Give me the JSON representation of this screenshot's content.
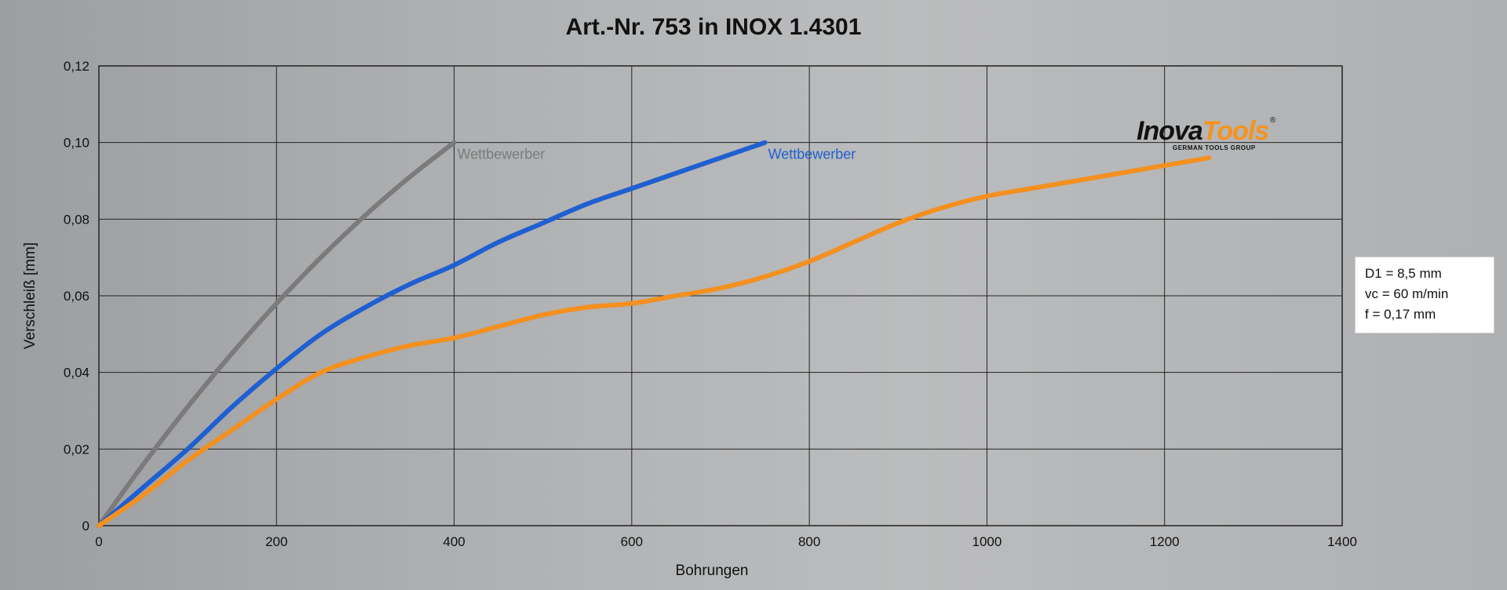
{
  "chart_data": {
    "type": "line",
    "title": "Art.-Nr. 753 in INOX 1.4301",
    "xlabel": "Bohrungen",
    "ylabel": "Verschleiß [mm]",
    "xlim": [
      0,
      1400
    ],
    "ylim": [
      0,
      0.12
    ],
    "x_ticks": [
      0,
      200,
      400,
      600,
      800,
      1000,
      1200,
      1400
    ],
    "x_tick_labels": [
      "0",
      "200",
      "400",
      "600",
      "800",
      "1000",
      "1200",
      "1400"
    ],
    "y_ticks": [
      0,
      0.02,
      0.04,
      0.06,
      0.08,
      0.1,
      0.12
    ],
    "y_tick_labels": [
      "0",
      "0,02",
      "0,04",
      "0,06",
      "0,08",
      "0,10",
      "0,12"
    ],
    "grid": true,
    "series": [
      {
        "name": "Wettbewerber",
        "color": "#7b7b7b",
        "x": [
          0,
          50,
          100,
          150,
          200,
          250,
          300,
          350,
          400
        ],
        "y": [
          0,
          0.016,
          0.031,
          0.045,
          0.058,
          0.07,
          0.081,
          0.091,
          0.1
        ]
      },
      {
        "name": "Wettbewerber",
        "color": "#1f5fd1",
        "x": [
          0,
          50,
          100,
          150,
          200,
          250,
          300,
          350,
          400,
          450,
          500,
          550,
          600,
          650,
          700,
          750
        ],
        "y": [
          0,
          0.01,
          0.02,
          0.031,
          0.041,
          0.05,
          0.057,
          0.063,
          0.068,
          0.074,
          0.079,
          0.084,
          0.088,
          0.092,
          0.096,
          0.1
        ]
      },
      {
        "name": "InovaTools",
        "color": "#f4901f",
        "x": [
          0,
          50,
          100,
          150,
          200,
          250,
          300,
          350,
          400,
          450,
          500,
          550,
          600,
          650,
          700,
          750,
          800,
          850,
          900,
          950,
          1000,
          1050,
          1100,
          1150,
          1200,
          1250
        ],
        "y": [
          0,
          0.008,
          0.017,
          0.025,
          0.033,
          0.04,
          0.044,
          0.047,
          0.049,
          0.052,
          0.055,
          0.057,
          0.058,
          0.06,
          0.062,
          0.065,
          0.069,
          0.074,
          0.079,
          0.083,
          0.086,
          0.088,
          0.09,
          0.092,
          0.094,
          0.096
        ]
      }
    ],
    "annotations": [
      {
        "text": "Wettbewerber",
        "x": 400,
        "y": 0.1,
        "color": "#7b7b7b"
      },
      {
        "text": "Wettbewerber",
        "x": 750,
        "y": 0.1,
        "color": "#1f5fd1"
      }
    ]
  },
  "info_box": {
    "lines": [
      "D1 = 8,5 mm",
      "vc = 60 m/min",
      "f = 0,17 mm"
    ]
  },
  "logo": {
    "text_part1": "Inova",
    "text_part2": "Tools",
    "registered": "®",
    "tagline": "GERMAN TOOLS GROUP"
  }
}
